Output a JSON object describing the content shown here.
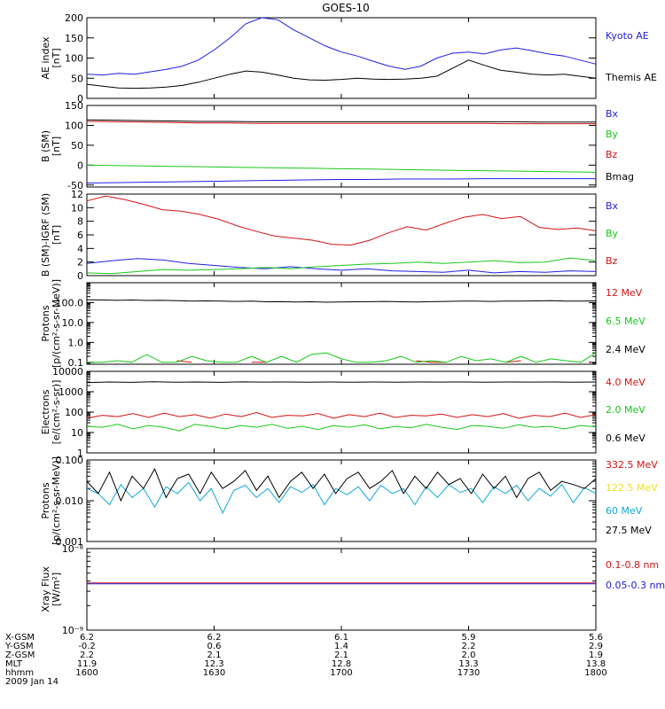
{
  "title": "GOES-10",
  "colors": {
    "black": "#000000",
    "blue": "#1e1ee6",
    "green": "#18c818",
    "red": "#d21414",
    "yellow": "#f0e020",
    "cyan": "#12a8dc",
    "navy": "#2020d0"
  },
  "chart_data": [
    {
      "type": "line",
      "ylabel": [
        "AE index",
        "[nT]"
      ],
      "scale": "linear",
      "ylim": [
        0,
        200
      ],
      "ticks": [
        0,
        50,
        100,
        150,
        200
      ],
      "tick_labels": [
        "0",
        "50",
        "100",
        "150",
        "200"
      ],
      "series": [
        {
          "name": "Kyoto AE",
          "color": "#1e1ee6",
          "values": [
            60,
            58,
            62,
            60,
            66,
            72,
            80,
            95,
            120,
            150,
            185,
            200,
            195,
            170,
            150,
            130,
            115,
            105,
            92,
            80,
            72,
            80,
            100,
            112,
            115,
            110,
            120,
            125,
            118,
            110,
            105,
            95,
            85
          ]
        },
        {
          "name": "Themis AE",
          "color": "#000000",
          "values": [
            35,
            30,
            26,
            25,
            26,
            28,
            32,
            40,
            50,
            60,
            68,
            65,
            58,
            50,
            46,
            45,
            47,
            50,
            48,
            47,
            48,
            50,
            55,
            75,
            95,
            82,
            70,
            65,
            60,
            58,
            60,
            55,
            50
          ]
        }
      ]
    },
    {
      "type": "line",
      "ylabel": [
        "B (SM)",
        "[nT]"
      ],
      "scale": "linear",
      "ylim": [
        -55,
        150
      ],
      "ticks": [
        -50,
        0,
        50,
        100,
        150
      ],
      "tick_labels": [
        "-50",
        "0",
        "50",
        "100",
        "150"
      ],
      "series": [
        {
          "name": "Bx",
          "color": "#1e1ee6",
          "values": [
            -45,
            -44,
            -43,
            -42,
            -41,
            -40,
            -39,
            -38,
            -37,
            -36,
            -36,
            -35,
            -35,
            -35,
            -34,
            -34,
            -34,
            -34,
            -34
          ]
        },
        {
          "name": "By",
          "color": "#18c818",
          "values": [
            0,
            -1,
            -2,
            -3,
            -4,
            -5,
            -6,
            -7,
            -8,
            -9,
            -10,
            -11,
            -12,
            -13,
            -14,
            -15,
            -16,
            -17,
            -18
          ]
        },
        {
          "name": "Bz",
          "color": "#d21414",
          "values": [
            110,
            109,
            108,
            107,
            106,
            106,
            105,
            105,
            105,
            105,
            105,
            105,
            105,
            105,
            105,
            104,
            104,
            104,
            104
          ]
        },
        {
          "name": "Bmag",
          "color": "#000000",
          "values": [
            114,
            113,
            112,
            111,
            110,
            110,
            109,
            109,
            109,
            109,
            109,
            109,
            109,
            109,
            109,
            109,
            108,
            108,
            108
          ]
        }
      ]
    },
    {
      "type": "line",
      "ylabel": [
        "B (SM)-IGRF (SM)",
        "[nT]"
      ],
      "scale": "linear",
      "ylim": [
        0,
        12
      ],
      "ticks": [
        0,
        2,
        4,
        6,
        8,
        10,
        12
      ],
      "tick_labels": [
        "0",
        "2",
        "4",
        "6",
        "8",
        "10",
        "12"
      ],
      "series": [
        {
          "name": "Bx",
          "color": "#1e1ee6",
          "values": [
            1.8,
            2.2,
            2.5,
            2.3,
            1.8,
            1.5,
            1.2,
            1.0,
            1.3,
            1.0,
            0.8,
            1.0,
            0.7,
            0.6,
            0.5,
            0.8,
            0.4,
            0.6,
            0.5,
            0.7,
            0.6
          ]
        },
        {
          "name": "By",
          "color": "#18c818",
          "values": [
            0.4,
            0.3,
            0.6,
            0.9,
            0.8,
            0.9,
            1.0,
            1.2,
            1.0,
            1.3,
            1.5,
            1.7,
            1.8,
            2.0,
            1.8,
            2.0,
            2.2,
            1.9,
            2.0,
            2.6,
            2.2
          ]
        },
        {
          "name": "Bz",
          "color": "#d21414",
          "values": [
            11,
            11.7,
            11.2,
            10.5,
            9.7,
            9.5,
            9.0,
            8.3,
            7.3,
            6.5,
            5.8,
            5.5,
            5.2,
            4.6,
            4.5,
            5.2,
            6.3,
            7.2,
            6.7,
            7.7,
            8.6,
            9.0,
            8.4,
            8.7,
            7.1,
            6.8,
            7.0,
            6.6
          ]
        }
      ]
    },
    {
      "type": "line",
      "ylabel": [
        "Protons",
        "[p/(cm²-s-sr-MeV)]"
      ],
      "scale": "log",
      "ylim": [
        0.08,
        1000
      ],
      "ticks": [
        0.1,
        1,
        10,
        100
      ],
      "tick_labels": [
        "0.1",
        "1.0",
        "10.0",
        "100.0"
      ],
      "series": [
        {
          "name": "12 MeV",
          "color": "#d21414",
          "values": [
            null,
            null,
            null,
            null,
            null,
            null,
            0.12,
            0.1,
            null,
            null,
            null,
            0.1,
            0.1,
            null,
            null,
            null,
            null,
            null,
            null,
            0.1,
            null,
            null,
            0.12,
            0.1,
            0.1,
            null,
            null,
            null,
            0.1,
            0.12,
            null,
            null,
            0.1,
            null,
            0.1
          ]
        },
        {
          "name": "6.5 MeV",
          "color": "#18c818",
          "values": [
            0.1,
            0.1,
            0.12,
            0.1,
            0.25,
            0.1,
            0.1,
            0.2,
            0.12,
            0.1,
            0.1,
            0.2,
            0.1,
            0.2,
            0.1,
            0.25,
            0.3,
            0.15,
            0.1,
            0.1,
            0.12,
            0.2,
            0.1,
            0.12,
            0.1,
            0.2,
            0.12,
            0.15,
            0.1,
            0.2,
            0.1,
            0.15,
            0.12,
            0.1,
            0.3
          ]
        },
        {
          "name": "2.4 MeV",
          "color": "#000000",
          "values": [
            140,
            135,
            130,
            135,
            128,
            130,
            125,
            120,
            122,
            118,
            115,
            118,
            110,
            112,
            108,
            110,
            105,
            108,
            110,
            112,
            115,
            110,
            108,
            112,
            115,
            120,
            118,
            115,
            120,
            118,
            122,
            125,
            120,
            118,
            122
          ]
        }
      ]
    },
    {
      "type": "line",
      "ylabel": [
        "Electrons",
        "[e/(cm²-s-sr)]"
      ],
      "scale": "log",
      "ylim": [
        1,
        10000
      ],
      "ticks": [
        1,
        10,
        100,
        1000,
        10000
      ],
      "tick_labels": [
        "1",
        "10",
        "100",
        "1000",
        "10000"
      ],
      "series": [
        {
          "name": "4.0 MeV",
          "color": "#d21414",
          "values": [
            50,
            70,
            60,
            85,
            55,
            90,
            60,
            75,
            50,
            80,
            60,
            95,
            55,
            70,
            65,
            85,
            50,
            75,
            60,
            90,
            55,
            70,
            65,
            80,
            55,
            75,
            60,
            85,
            50,
            70,
            60,
            90,
            55,
            75
          ]
        },
        {
          "name": "2.0 MeV",
          "color": "#18c818",
          "values": [
            20,
            18,
            25,
            15,
            22,
            18,
            12,
            25,
            20,
            15,
            22,
            18,
            25,
            16,
            20,
            14,
            22,
            18,
            24,
            15,
            20,
            17,
            25,
            18,
            14,
            22,
            20,
            16,
            24,
            18,
            20,
            15,
            22,
            19
          ]
        },
        {
          "name": "0.6 MeV",
          "color": "#000000",
          "values": [
            2800,
            3000,
            2900,
            3100,
            2950,
            3000,
            2900,
            3050,
            2980,
            3000,
            2920,
            3020,
            2960,
            3000,
            2940,
            3010,
            2970,
            3000,
            2950,
            3020,
            2980,
            3000,
            2960,
            3010
          ]
        }
      ]
    },
    {
      "type": "line",
      "ylabel": [
        "Protons",
        "[p/(cm²-s-sr-MeV)]"
      ],
      "scale": "log",
      "ylim": [
        0.001,
        0.1
      ],
      "ticks": [
        0.001,
        0.01,
        0.1
      ],
      "tick_labels": [
        "0.001",
        "0.010",
        "0.100"
      ],
      "series": [
        {
          "name": "332.5 MeV",
          "color": "#d21414",
          "values": []
        },
        {
          "name": "122.5 MeV",
          "color": "#f0e020",
          "values": []
        },
        {
          "name": "60 MeV",
          "color": "#12a8dc",
          "values": [
            0.02,
            0.015,
            0.008,
            0.025,
            0.012,
            0.02,
            0.007,
            0.022,
            0.015,
            0.028,
            0.01,
            0.02,
            0.005,
            0.018,
            0.024,
            0.012,
            0.02,
            0.009,
            0.022,
            0.016,
            0.025,
            0.008,
            0.02,
            0.014,
            0.022,
            0.01,
            0.024,
            0.015,
            0.02,
            0.008,
            0.022,
            0.012,
            0.025,
            0.016,
            0.02,
            0.009,
            0.022,
            0.015,
            0.024,
            0.01,
            0.02,
            0.013,
            0.025,
            0.009,
            0.021,
            0.015
          ]
        },
        {
          "name": "27.5 MeV",
          "color": "#000000",
          "values": [
            0.03,
            0.015,
            0.05,
            0.01,
            0.04,
            0.02,
            0.06,
            0.012,
            0.035,
            0.045,
            0.015,
            0.05,
            0.02,
            0.03,
            0.055,
            0.018,
            0.04,
            0.012,
            0.03,
            0.05,
            0.02,
            0.045,
            0.015,
            0.035,
            0.05,
            0.02,
            0.03,
            0.055,
            0.015,
            0.04,
            0.02,
            0.05,
            0.025,
            0.035,
            0.015,
            0.045,
            0.02,
            0.04,
            0.012,
            0.035,
            0.05,
            0.018,
            0.03,
            0.025,
            0.02,
            0.035
          ]
        }
      ]
    },
    {
      "type": "line",
      "ylabel": [
        "Xray Flux",
        "[W/m²]"
      ],
      "scale": "log",
      "ylim": [
        1e-09,
        1e-08
      ],
      "ticks": [
        1e-09,
        1e-08
      ],
      "tick_labels": [
        "10⁻⁹",
        "10⁻⁸"
      ],
      "series": [
        {
          "name": "0.1-0.8 nm",
          "color": "#d21414",
          "values": [
            3.8e-09,
            3.8e-09,
            3.8e-09,
            3.8e-09,
            3.8e-09
          ]
        },
        {
          "name": "0.05-0.3 nm",
          "color": "#2020d0",
          "values": [
            3.7e-09,
            3.7e-09,
            3.7e-09,
            3.7e-09,
            3.7e-09
          ]
        }
      ]
    }
  ],
  "ephemeris": {
    "labels": [
      "X-GSM",
      "Y-GSM",
      "Z-GSM",
      "MLT",
      "hhmm"
    ],
    "date": "2009 Jan 14",
    "columns": [
      [
        "6.2",
        "-0.2",
        "2.2",
        "11.9",
        "1600"
      ],
      [
        "6.2",
        "0.6",
        "2.1",
        "12.3",
        "1630"
      ],
      [
        "6.1",
        "1.4",
        "2.1",
        "12.8",
        "1700"
      ],
      [
        "5.9",
        "2.2",
        "2.0",
        "13.3",
        "1730"
      ],
      [
        "5.6",
        "2.9",
        "1.9",
        "13.8",
        "1800"
      ]
    ]
  }
}
